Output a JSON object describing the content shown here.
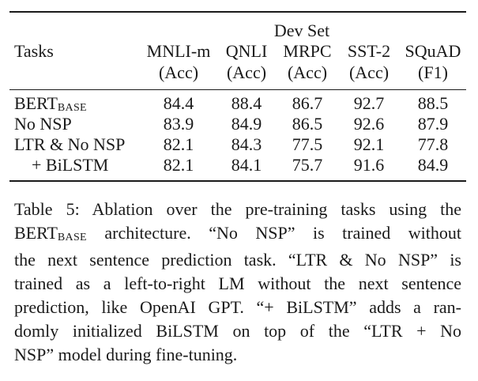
{
  "table": {
    "group_header": "Dev Set",
    "tasks_header": "Tasks",
    "columns": [
      {
        "name": "MNLI-m",
        "metric": "(Acc)"
      },
      {
        "name": "QNLI",
        "metric": "(Acc)"
      },
      {
        "name": "MRPC",
        "metric": "(Acc)"
      },
      {
        "name": "SST-2",
        "metric": "(Acc)"
      },
      {
        "name": "SQuAD",
        "metric": "(F1)"
      }
    ],
    "rows": [
      {
        "label": "BERT",
        "label_sub": "BASE",
        "values": [
          "84.4",
          "88.4",
          "86.7",
          "92.7",
          "88.5"
        ]
      },
      {
        "label": "No NSP",
        "label_sub": "",
        "values": [
          "83.9",
          "84.9",
          "86.5",
          "92.6",
          "87.9"
        ]
      },
      {
        "label": "LTR & No NSP",
        "label_sub": "",
        "values": [
          "82.1",
          "84.3",
          "77.5",
          "92.1",
          "77.8"
        ]
      },
      {
        "label": "+ BiLSTM",
        "label_sub": "",
        "values": [
          "82.1",
          "84.1",
          "75.7",
          "91.6",
          "84.9"
        ]
      }
    ]
  },
  "caption": {
    "l1": "Table 5: Ablation over the pre-training tasks using the",
    "l2_a": "BERT",
    "l2_sub": "BASE",
    "l2_b": " architecture.  “No NSP” is trained without",
    "l3": "the next sentence prediction task. “LTR & No NSP” is",
    "l4": "trained as a left-to-right LM without the next sentence",
    "l5": "prediction, like OpenAI GPT. “+ BiLSTM” adds a ran-",
    "l6": "domly initialized BiLSTM on top of the “LTR + No",
    "l7": "NSP” model during fine-tuning."
  }
}
